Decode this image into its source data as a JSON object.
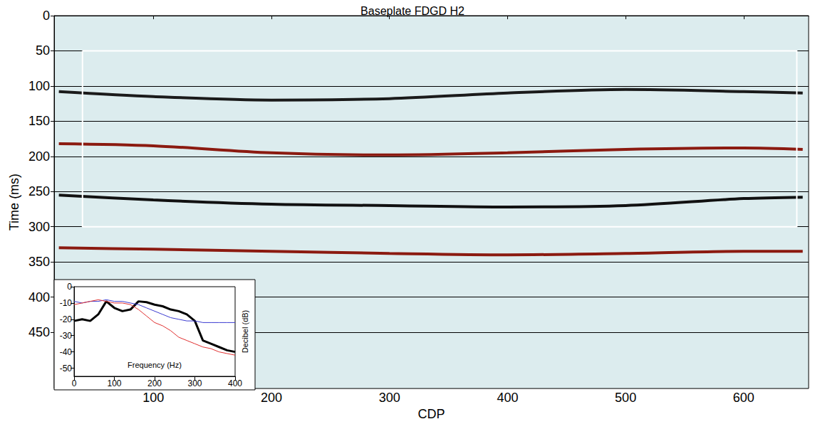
{
  "chart_data": [
    {
      "type": "line",
      "title": "Baseplate FDGD H2",
      "x_label": "CDP",
      "y_label": "Time (ms)",
      "x": [
        20,
        100,
        200,
        300,
        400,
        500,
        600,
        650
      ],
      "series": [
        {
          "color": "#1a1a1a",
          "values": [
            108,
            115,
            120,
            118,
            110,
            105,
            108,
            110
          ]
        },
        {
          "color": "#8b1a10",
          "values": [
            182,
            185,
            195,
            198,
            195,
            190,
            188,
            190
          ]
        },
        {
          "color": "#111111",
          "values": [
            255,
            262,
            268,
            270,
            272,
            270,
            260,
            258
          ]
        },
        {
          "color": "#8b1a10",
          "values": [
            330,
            332,
            335,
            338,
            340,
            338,
            335,
            335
          ]
        }
      ],
      "annotations": [
        {
          "type": "rectangle",
          "x": [
            40,
            645
          ],
          "y": [
            50,
            300
          ],
          "color": "#ffffff"
        }
      ],
      "xlim": [
        16,
        655
      ],
      "xticks": [
        100,
        200,
        300,
        400,
        500,
        600
      ],
      "ylim": [
        530,
        0
      ],
      "yticks": [
        0,
        50,
        100,
        150,
        200,
        250,
        300,
        350,
        400,
        450
      ],
      "grid": true
    },
    {
      "type": "line",
      "x_label": "Frequency (Hz)",
      "y_label": "Decibel (dB)",
      "x": [
        0,
        20,
        40,
        60,
        80,
        100,
        120,
        140,
        160,
        180,
        200,
        220,
        240,
        260,
        280,
        300,
        320,
        340,
        360,
        380,
        400
      ],
      "series": [
        {
          "color": "#000000",
          "values": [
            -21,
            -20,
            -21,
            -17,
            -9,
            -13,
            -15,
            -14,
            -9,
            -9.5,
            -11,
            -12,
            -14,
            -15,
            -17,
            -21,
            -33,
            -35,
            -37,
            -39,
            -40
          ]
        },
        {
          "color": "#3b3bd0",
          "values": [
            -9,
            -10,
            -9,
            -9,
            -8,
            -9,
            -9,
            -10,
            -11,
            -13,
            -15,
            -17,
            -19,
            -20,
            -21,
            -21,
            -22,
            -22,
            -22,
            -22,
            -22
          ]
        },
        {
          "color": "#e03030",
          "values": [
            -11,
            -10,
            -9,
            -8,
            -9,
            -10,
            -10,
            -11,
            -14,
            -18,
            -22,
            -24,
            -27,
            -31,
            -33,
            -35,
            -37,
            -38,
            -40,
            -41,
            -42
          ]
        }
      ],
      "xlim": [
        0,
        400
      ],
      "xticks": [
        0,
        100,
        200,
        300,
        400
      ],
      "ylim": [
        -55,
        0
      ],
      "yticks": [
        0,
        -10,
        -20,
        -30,
        -40,
        -50
      ],
      "grid": false
    }
  ]
}
